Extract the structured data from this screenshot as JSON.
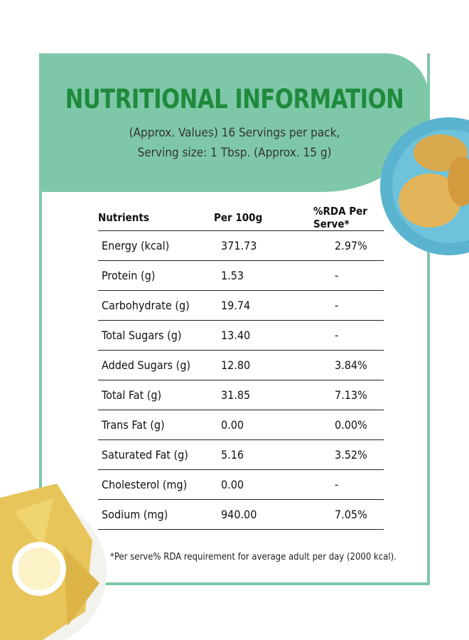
{
  "title": "NUTRITIONAL INFORMATION",
  "subtitle": [
    "(Approx. Values) 16 Servings per pack,",
    "Serving size: 1 Tbsp. (Approx. 15 g)"
  ],
  "table": {
    "header": [
      "Nutrients",
      "Per 100g",
      "%RDA Per Serve*"
    ],
    "rows": [
      [
        "Energy (kcal)",
        "371.73",
        "2.97%"
      ],
      [
        "Protein (g)",
        "1.53",
        "-"
      ],
      [
        "Carbohydrate (g)",
        "19.74",
        "-"
      ],
      [
        "Total Sugars (g)",
        "13.40",
        "-"
      ],
      [
        "Added Sugars (g)",
        "12.80",
        "3.84%"
      ],
      [
        "Total Fat (g)",
        "31.85",
        "7.13%"
      ],
      [
        "Trans Fat (g)",
        "0.00",
        "0.00%"
      ],
      [
        "Saturated Fat (g)",
        "5.16",
        "3.52%"
      ],
      [
        "Cholesterol (mg)",
        "0.00",
        "-"
      ],
      [
        "Sodium (mg)",
        "940.00",
        "7.05%"
      ]
    ]
  },
  "footnote": "*Per serve% RDA requirement for average adult per day (2000 kcal)."
}
